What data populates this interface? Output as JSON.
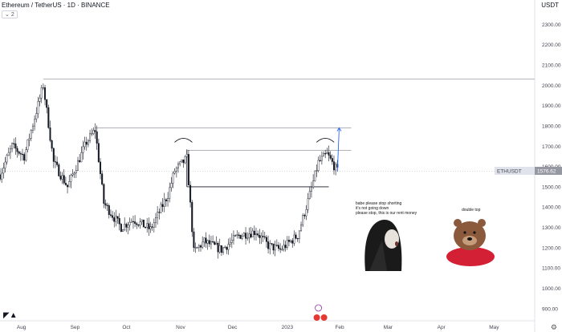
{
  "header": {
    "title": "Ethereum / TetherUS · 1D · BINANCE",
    "collapse_label": "2",
    "currency": "USDT"
  },
  "price_label": {
    "symbol": "ETHUSDT",
    "value": "1576.62"
  },
  "annotations": {
    "meme_left_text": [
      "babe please stop shorting",
      "it's not going down",
      "please stop, this is our rent money"
    ],
    "meme_right_text": "double top"
  },
  "icons": {
    "logo": "tradingview-logo-icon",
    "settings": "gear-icon",
    "events": "flash-icon"
  },
  "colors": {
    "candle": "#131722",
    "line": "#131722",
    "projection": "#2962ff",
    "hline": "#9598a1"
  },
  "chart_data": {
    "type": "candlestick",
    "title": "Ethereum / TetherUS · 1D · BINANCE",
    "y_ticks": [
      900,
      1000,
      1100,
      1200,
      1300,
      1400,
      1500,
      1600,
      1700,
      1800,
      1900,
      2000,
      2100,
      2200,
      2300
    ],
    "ylim": [
      840,
      2420
    ],
    "x_ticks": [
      "Aug",
      "Sep",
      "Oct",
      "Nov",
      "Dec",
      "2023",
      "Feb",
      "Mar",
      "Apr",
      "May"
    ],
    "last_price": 1576.62,
    "close_path": [
      {
        "date": "2022-07-20",
        "price": 1560
      },
      {
        "date": "2022-07-27",
        "price": 1700
      },
      {
        "date": "2022-08-03",
        "price": 1650
      },
      {
        "date": "2022-08-14",
        "price": 2000
      },
      {
        "date": "2022-08-20",
        "price": 1620
      },
      {
        "date": "2022-08-28",
        "price": 1500
      },
      {
        "date": "2022-09-08",
        "price": 1720
      },
      {
        "date": "2022-09-13",
        "price": 1780
      },
      {
        "date": "2022-09-18",
        "price": 1420
      },
      {
        "date": "2022-09-28",
        "price": 1300
      },
      {
        "date": "2022-10-05",
        "price": 1340
      },
      {
        "date": "2022-10-15",
        "price": 1290
      },
      {
        "date": "2022-10-25",
        "price": 1460
      },
      {
        "date": "2022-10-29",
        "price": 1580
      },
      {
        "date": "2022-11-05",
        "price": 1640
      },
      {
        "date": "2022-11-09",
        "price": 1180
      },
      {
        "date": "2022-11-15",
        "price": 1230
      },
      {
        "date": "2022-11-25",
        "price": 1190
      },
      {
        "date": "2022-12-05",
        "price": 1260
      },
      {
        "date": "2022-12-15",
        "price": 1280
      },
      {
        "date": "2022-12-22",
        "price": 1210
      },
      {
        "date": "2022-12-29",
        "price": 1190
      },
      {
        "date": "2023-01-08",
        "price": 1260
      },
      {
        "date": "2023-01-14",
        "price": 1430
      },
      {
        "date": "2023-01-20",
        "price": 1620
      },
      {
        "date": "2023-01-25",
        "price": 1660
      },
      {
        "date": "2023-01-31",
        "price": 1576
      }
    ],
    "horizontal_lines": [
      {
        "name": "august-high",
        "price": 2030
      },
      {
        "name": "september-high",
        "price": 1790
      },
      {
        "name": "double-top-resistance",
        "price": 1680
      },
      {
        "name": "support",
        "price": 1500
      }
    ],
    "projection": [
      {
        "date": "2023-01-31",
        "price": 1576
      },
      {
        "date": "2023-02-01",
        "price": 1790
      }
    ]
  }
}
